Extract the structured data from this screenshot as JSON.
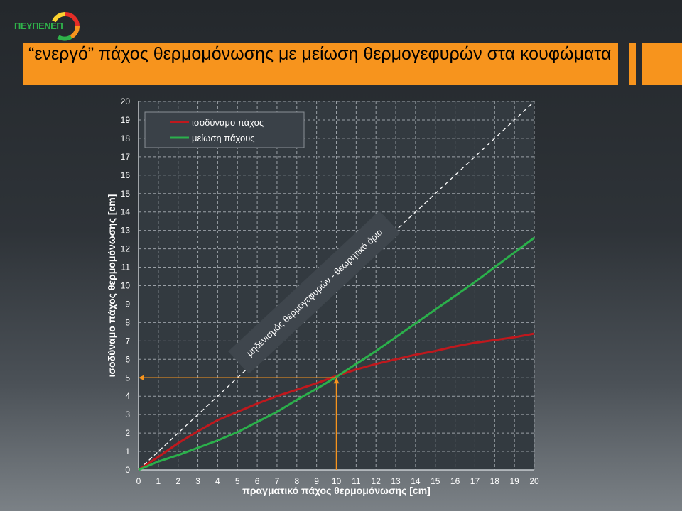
{
  "header": {
    "logo_text": "ΠΕΥΠΕΝΕΠ",
    "title": "“ενεργό” πάχος θερμομόνωσης με μείωση θερμογεφυρών στα κουφώματα"
  },
  "chart_data": {
    "type": "line",
    "xlabel": "πραγματικό πάχος θερμομόνωσης [cm]",
    "ylabel": "ισοδύναμο πάχος θερμομόνωσης [cm]",
    "xlim": [
      0,
      20
    ],
    "ylim": [
      0,
      20
    ],
    "x_ticks": [
      "0",
      "1",
      "2",
      "3",
      "4",
      "5",
      "6",
      "7",
      "8",
      "9",
      "10",
      "11",
      "12",
      "13",
      "14",
      "15",
      "16",
      "17",
      "18",
      "19",
      "20"
    ],
    "y_ticks": [
      "0",
      "1",
      "2",
      "3",
      "4",
      "5",
      "6",
      "7",
      "8",
      "9",
      "10",
      "11",
      "12",
      "13",
      "14",
      "15",
      "16",
      "17",
      "18",
      "19",
      "20"
    ],
    "grid": true,
    "legend_position": "top-left",
    "series": [
      {
        "name": "ισοδύναμο πάχος",
        "color": "#c0181d",
        "x": [
          0,
          1,
          2,
          3,
          4,
          5,
          6,
          7,
          8,
          9,
          10,
          11,
          12,
          13,
          14,
          15,
          16,
          17,
          18,
          19,
          20
        ],
        "y": [
          0,
          0.7,
          1.45,
          2.1,
          2.7,
          3.15,
          3.6,
          4.0,
          4.35,
          4.7,
          5.1,
          5.45,
          5.75,
          6.0,
          6.25,
          6.45,
          6.7,
          6.9,
          7.05,
          7.2,
          7.4
        ]
      },
      {
        "name": "μείωση πάχους",
        "color": "#2bb04b",
        "x": [
          0,
          1,
          2,
          3,
          4,
          5,
          6,
          7,
          8,
          9,
          10,
          11,
          12,
          13,
          14,
          15,
          16,
          17,
          18,
          19,
          20
        ],
        "y": [
          0,
          0.45,
          0.8,
          1.2,
          1.6,
          2.05,
          2.6,
          3.15,
          3.8,
          4.4,
          5.05,
          5.75,
          6.45,
          7.2,
          7.95,
          8.7,
          9.45,
          10.2,
          11.0,
          11.8,
          12.6
        ]
      }
    ],
    "reference_line": {
      "x": [
        0,
        20
      ],
      "y": [
        0,
        20
      ],
      "color": "#ffffff",
      "style": "dashed",
      "label": "μηδενισμός θερμογεφυρών - θεωρητικό όριο"
    },
    "annotation_arrows": {
      "color": "#f7941d",
      "vertical": {
        "x": 10,
        "y_from": 0,
        "y_to": 5
      },
      "horizontal": {
        "y": 5,
        "x_from": 10,
        "x_to": 0
      }
    }
  }
}
